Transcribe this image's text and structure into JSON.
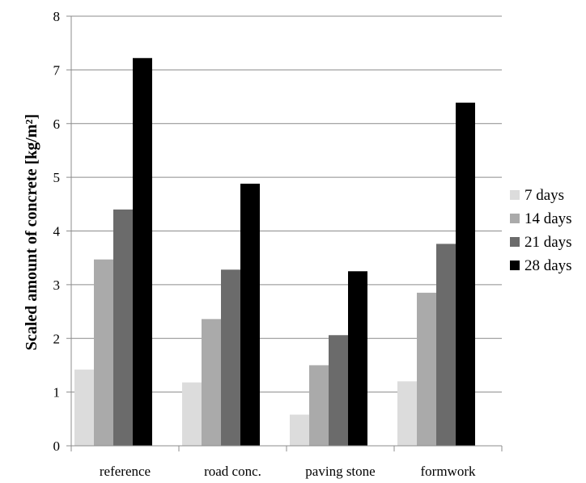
{
  "chart_data": {
    "type": "bar",
    "title": "",
    "xlabel": "",
    "ylabel": "Scaled amount of concrete [kg/m²]",
    "ylim": [
      0,
      8
    ],
    "yticks": [
      "0",
      "1",
      "2",
      "3",
      "4",
      "5",
      "6",
      "7",
      "8"
    ],
    "grid": true,
    "legend_position": "right",
    "categories": [
      "reference",
      "road conc.",
      "paving stone",
      "formwork"
    ],
    "series": [
      {
        "name": "7 days",
        "color": "#dcdcdc",
        "values": [
          1.42,
          1.18,
          0.58,
          1.2
        ]
      },
      {
        "name": "14 days",
        "color": "#aaaaaa",
        "values": [
          3.47,
          2.36,
          1.5,
          2.85
        ]
      },
      {
        "name": "21 days",
        "color": "#6b6b6b",
        "values": [
          4.4,
          3.28,
          2.06,
          3.76
        ]
      },
      {
        "name": "28 days",
        "color": "#000000",
        "values": [
          7.22,
          4.88,
          3.25,
          6.39
        ]
      }
    ]
  }
}
